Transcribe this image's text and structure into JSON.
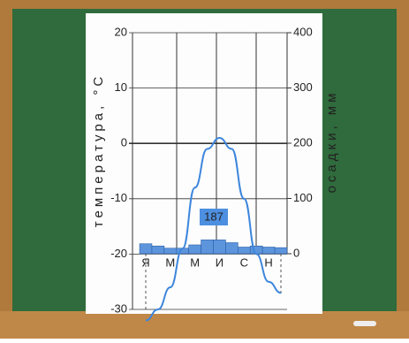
{
  "chart_data": {
    "type": "combo",
    "ylabel": "температура, °C",
    "y2label": "осадки, мм",
    "categories": [
      "Я",
      null,
      "М",
      null,
      "М",
      null,
      "И",
      null,
      "С",
      null,
      "Н",
      null
    ],
    "series": [
      {
        "name": "температура",
        "type": "line",
        "axis": "y",
        "color": "#3d86dc",
        "values": [
          -32,
          -30,
          -26,
          -19,
          -8,
          -1,
          1,
          -1,
          -10,
          -20,
          -25,
          -27
        ]
      },
      {
        "name": "осадки",
        "type": "bar",
        "axis": "y2",
        "color": "#5d95dc",
        "values": [
          18,
          14,
          10,
          10,
          16,
          25,
          25,
          20,
          12,
          14,
          12,
          11
        ]
      }
    ],
    "annotation": "187",
    "ylim": [
      -30,
      20
    ],
    "yticks": [
      20,
      10,
      0,
      -10,
      -20,
      -30
    ],
    "y2lim": [
      0,
      400
    ],
    "y2ticks": [
      400,
      300,
      200,
      100,
      0
    ],
    "grid": true
  }
}
